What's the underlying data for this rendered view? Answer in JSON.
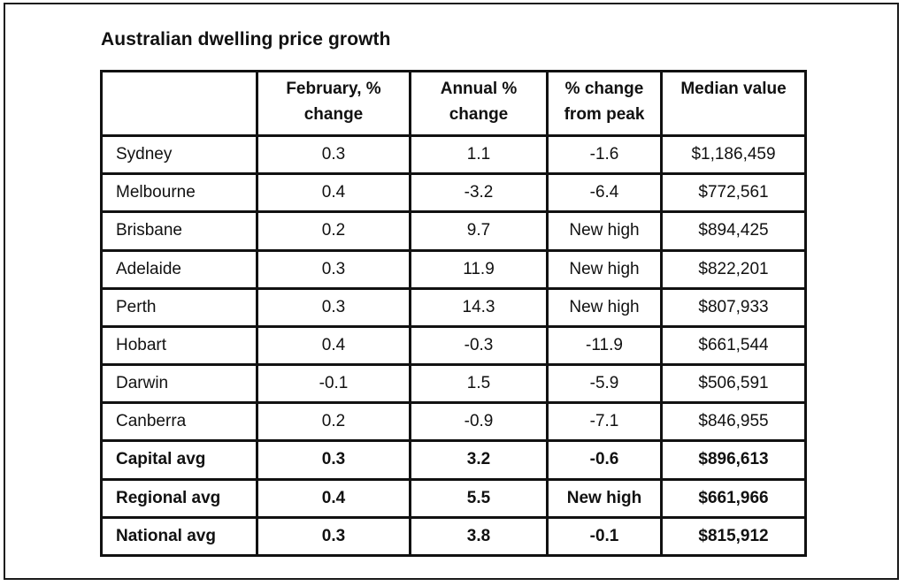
{
  "title": "Australian dwelling price growth",
  "table": {
    "headers": [
      "",
      "February, %\nchange",
      "Annual %\nchange",
      "% change\nfrom peak",
      "Median value"
    ],
    "rows": [
      [
        "Sydney",
        "0.3",
        "1.1",
        "-1.6",
        "$1,186,459"
      ],
      [
        "Melbourne",
        "0.4",
        "-3.2",
        "-6.4",
        "$772,561"
      ],
      [
        "Brisbane",
        "0.2",
        "9.7",
        "New high",
        "$894,425"
      ],
      [
        "Adelaide",
        "0.3",
        "11.9",
        "New high",
        "$822,201"
      ],
      [
        "Perth",
        "0.3",
        "14.3",
        "New high",
        "$807,933"
      ],
      [
        "Hobart",
        "0.4",
        "-0.3",
        "-11.9",
        "$661,544"
      ],
      [
        "Darwin",
        "-0.1",
        "1.5",
        "-5.9",
        "$506,591"
      ],
      [
        "Canberra",
        "0.2",
        "-0.9",
        "-7.1",
        "$846,955"
      ],
      [
        "Capital avg",
        "0.3",
        "3.2",
        "-0.6",
        "$896,613"
      ],
      [
        "Regional avg",
        "0.4",
        "5.5",
        "New high",
        "$661,966"
      ],
      [
        "National avg",
        "0.3",
        "3.8",
        "-0.1",
        "$815,912"
      ]
    ],
    "bold_rows": [
      8,
      9,
      10
    ]
  }
}
